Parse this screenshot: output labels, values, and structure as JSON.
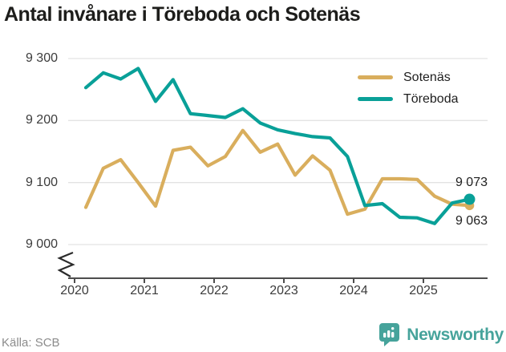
{
  "title": "Antal invånare i Töreboda och Sotenäs",
  "source": "Källa: SCB",
  "branding": {
    "name": "Newsworthy",
    "logo_icon": "bar-chart-badge-icon",
    "color": "#46a39b"
  },
  "colors": {
    "sotenas": "#d9ae5d",
    "toreboda": "#09a098",
    "grid": "#e3e3e3",
    "axis_line": "#4d4d4d",
    "title_text": "#1d1d1b",
    "tick_text": "#3c3c3c",
    "muted_text": "#8c8c8c",
    "end_label_text": "#1f1f1f"
  },
  "legend": [
    {
      "label": "Sotenäs",
      "color": "#d9ae5d"
    },
    {
      "label": "Töreboda",
      "color": "#09a098"
    }
  ],
  "end_labels": {
    "toreboda": "9 073",
    "sotenas": "9 063"
  },
  "chart_data": {
    "type": "line",
    "title": "Antal invånare i Töreboda och Sotenäs",
    "x": [
      "2020 Q1",
      "2020 Q2",
      "2020 Q3",
      "2020 Q4",
      "2021 Q1",
      "2021 Q2",
      "2021 Q3",
      "2021 Q4",
      "2022 Q1",
      "2022 Q2",
      "2022 Q3",
      "2022 Q4",
      "2023 Q1",
      "2023 Q2",
      "2023 Q3",
      "2023 Q4",
      "2024 Q1",
      "2024 Q2",
      "2024 Q3",
      "2024 Q4",
      "2025 Q1",
      "2025 Q2",
      "2025 Q3"
    ],
    "series": [
      {
        "name": "Sotenäs",
        "color": "#d9ae5d",
        "values": [
          9060,
          9123,
          9137,
          9100,
          9062,
          9152,
          9157,
          9127,
          9142,
          9184,
          9149,
          9162,
          9112,
          9143,
          9120,
          9049,
          9057,
          9106,
          9106,
          9105,
          9078,
          9065,
          9063
        ],
        "last_value_label": "9 063"
      },
      {
        "name": "Töreboda",
        "color": "#09a098",
        "values": [
          9253,
          9277,
          9267,
          9284,
          9231,
          9266,
          9211,
          9208,
          9205,
          9219,
          9196,
          9185,
          9179,
          9174,
          9172,
          9142,
          9063,
          9066,
          9044,
          9043,
          9034,
          9067,
          9073
        ],
        "last_value_label": "9 073"
      }
    ],
    "ylim": [
      9000,
      9300
    ],
    "axis_break": true,
    "grid": "horizontal",
    "legend_position": "top-right",
    "yticks": [
      {
        "value": 9300,
        "label": "9 300"
      },
      {
        "value": 9200,
        "label": "9 200"
      },
      {
        "value": 9100,
        "label": "9 100"
      },
      {
        "value": 9000,
        "label": "9 000"
      }
    ],
    "xticks": [
      {
        "value": 2020,
        "label": "2020"
      },
      {
        "value": 2021,
        "label": "2021"
      },
      {
        "value": 2022,
        "label": "2022"
      },
      {
        "value": 2023,
        "label": "2023"
      },
      {
        "value": 2024,
        "label": "2024"
      },
      {
        "value": 2025,
        "label": "2025"
      }
    ],
    "xlabel": "",
    "ylabel": "",
    "source": "Källa: SCB"
  }
}
